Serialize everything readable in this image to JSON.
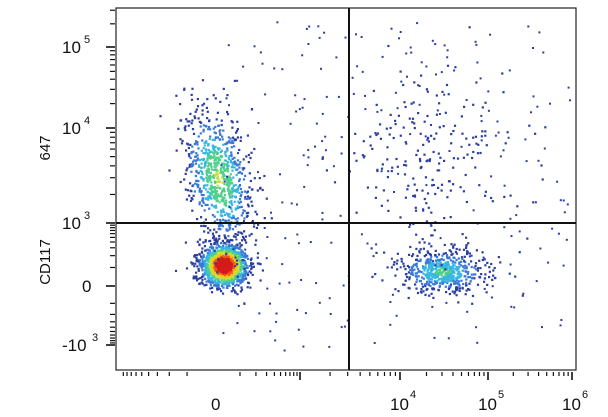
{
  "chart_data": {
    "type": "scatter",
    "title": "",
    "subtitle": "",
    "xlabel": "",
    "ylabel_parts": [
      "CD117",
      "647"
    ],
    "x_scale": "biexponential",
    "y_scale": "biexponential",
    "x_ticks": [
      {
        "value": 0,
        "base": "0",
        "exp": ""
      },
      {
        "value": 10000,
        "base": "10",
        "exp": "4"
      },
      {
        "value": 100000,
        "base": "10",
        "exp": "5"
      },
      {
        "value": 1000000,
        "base": "10",
        "exp": "6"
      }
    ],
    "y_ticks": [
      {
        "value": -1000,
        "base": "-10",
        "exp": "3"
      },
      {
        "value": 0,
        "base": "0",
        "exp": ""
      },
      {
        "value": 1000,
        "base": "10",
        "exp": "3"
      },
      {
        "value": 10000,
        "base": "10",
        "exp": "4"
      },
      {
        "value": 100000,
        "base": "10",
        "exp": "5"
      }
    ],
    "quadrant_gates": {
      "x": 2500,
      "y": 1000
    },
    "color_scale": [
      "#2c3e9e",
      "#3b78d6",
      "#35b7e0",
      "#4fd08a",
      "#c4e23a",
      "#f5c21b",
      "#ef5a17",
      "#d61a1a"
    ],
    "populations": [
      {
        "name_hidden": true,
        "x_center": 30,
        "y_center": 120,
        "count": 1300,
        "peak_density": 1.0
      },
      {
        "name_hidden": true,
        "x_center": 10,
        "y_center": 3000,
        "count": 800,
        "peak_density": 0.45
      },
      {
        "name_hidden": true,
        "x_center": 30000,
        "y_center": 80,
        "count": 550,
        "peak_density": 0.35
      },
      {
        "name_hidden": true,
        "x_center": 20000,
        "y_center": 5000,
        "count": 220,
        "peak_density": 0.1
      }
    ],
    "grid": false,
    "legend": "none"
  }
}
